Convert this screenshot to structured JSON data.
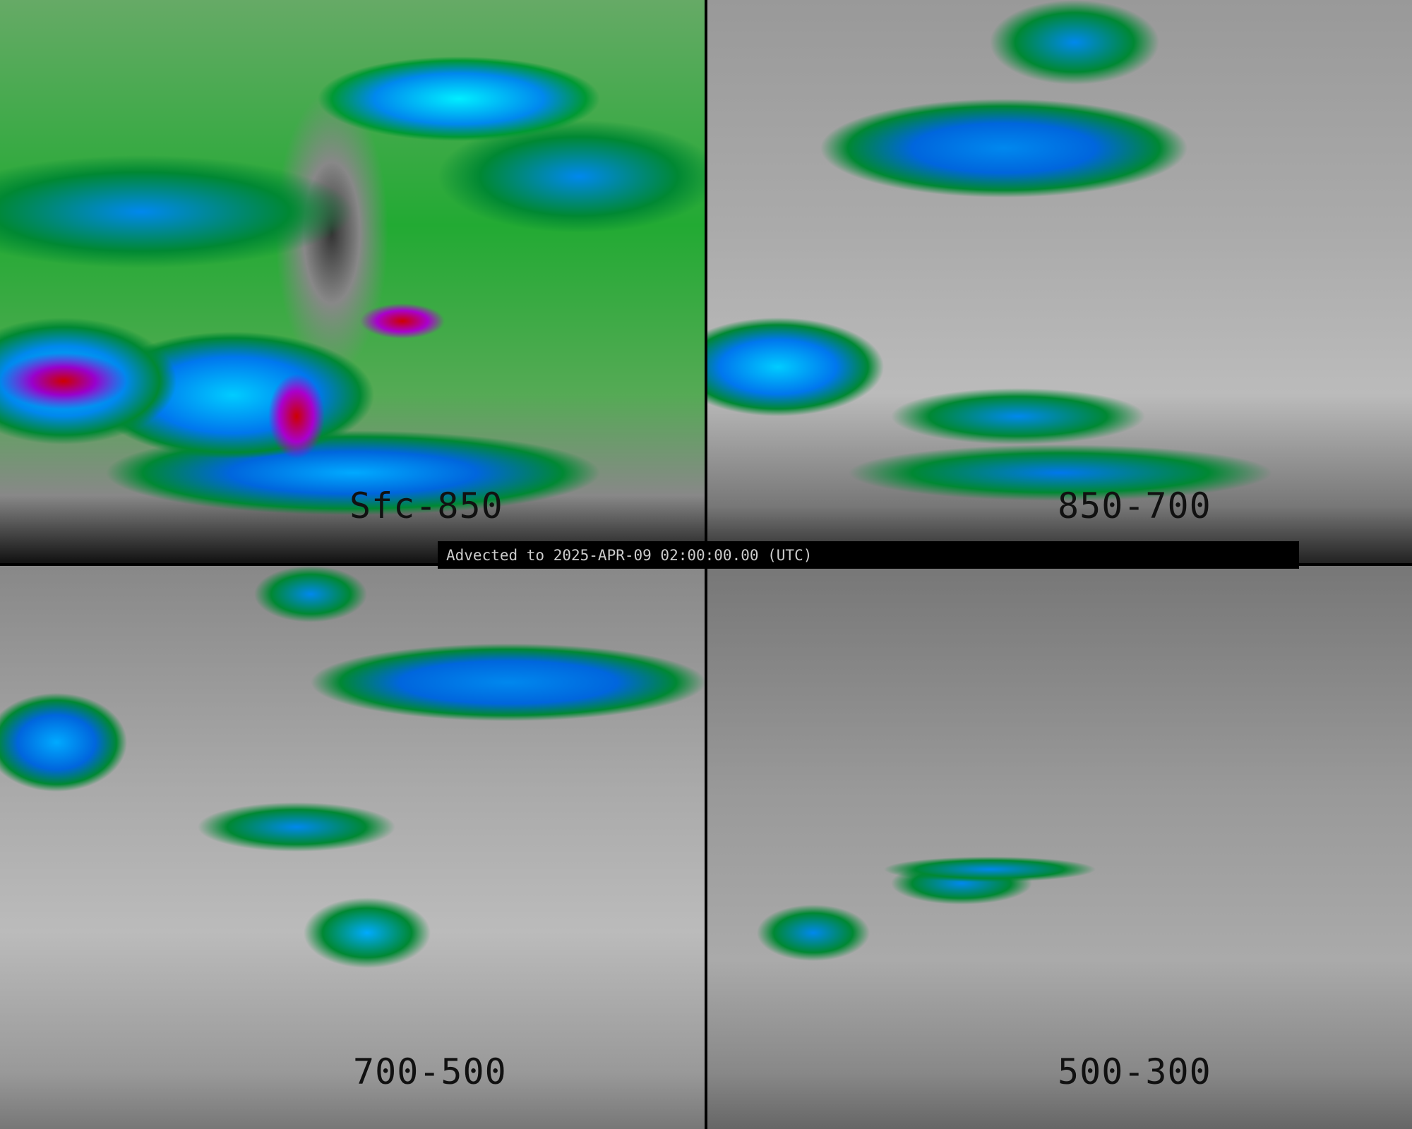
{
  "banner": {
    "text": "Advected to 2025-APR-09 02:00:00.00 (UTC)"
  },
  "panels": [
    {
      "label": "Sfc-850"
    },
    {
      "label": "850-700"
    },
    {
      "label": "700-500"
    },
    {
      "label": "500-300"
    }
  ],
  "colors": {
    "background": "#000000",
    "low": "#808080",
    "green": "#008833",
    "blue": "#0077ee",
    "cyan": "#00ccff",
    "purple": "#aa00cc",
    "red": "#cc0000"
  }
}
